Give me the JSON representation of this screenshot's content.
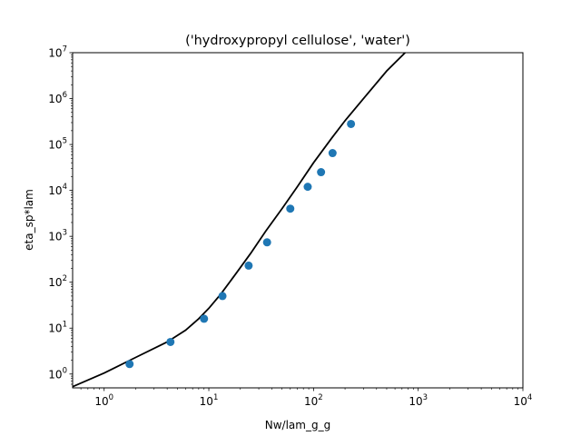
{
  "chart_data": {
    "type": "scatter",
    "title": "('hydroxypropyl cellulose', 'water')",
    "xlabel": "Nw/lam_g_g",
    "ylabel": "eta_sp*lam",
    "xscale": "log",
    "yscale": "log",
    "xlim": [
      0.5,
      10000
    ],
    "ylim": [
      0.5,
      10000000
    ],
    "grid": false,
    "x_ticks": [
      {
        "value": 1,
        "base": "10",
        "exp": "0"
      },
      {
        "value": 10,
        "base": "10",
        "exp": "1"
      },
      {
        "value": 100,
        "base": "10",
        "exp": "2"
      },
      {
        "value": 1000,
        "base": "10",
        "exp": "3"
      },
      {
        "value": 10000,
        "base": "10",
        "exp": "4"
      }
    ],
    "y_ticks": [
      {
        "value": 1,
        "base": "10",
        "exp": "0"
      },
      {
        "value": 10,
        "base": "10",
        "exp": "1"
      },
      {
        "value": 100,
        "base": "10",
        "exp": "2"
      },
      {
        "value": 1000,
        "base": "10",
        "exp": "3"
      },
      {
        "value": 10000,
        "base": "10",
        "exp": "4"
      },
      {
        "value": 100000,
        "base": "10",
        "exp": "5"
      },
      {
        "value": 1000000,
        "base": "10",
        "exp": "6"
      },
      {
        "value": 10000000,
        "base": "10",
        "exp": "7"
      }
    ],
    "series": [
      {
        "kind": "scatter",
        "color": "#1f77b4",
        "points": [
          {
            "x": 1.75,
            "y": 1.65
          },
          {
            "x": 4.3,
            "y": 5.0
          },
          {
            "x": 9.0,
            "y": 16
          },
          {
            "x": 13.5,
            "y": 50
          },
          {
            "x": 24,
            "y": 230
          },
          {
            "x": 36,
            "y": 740
          },
          {
            "x": 60,
            "y": 4000
          },
          {
            "x": 88,
            "y": 12000
          },
          {
            "x": 118,
            "y": 25000
          },
          {
            "x": 152,
            "y": 65000
          },
          {
            "x": 228,
            "y": 280000
          }
        ]
      },
      {
        "kind": "line",
        "color": "#000000",
        "points": [
          {
            "x": 0.5,
            "y": 0.53
          },
          {
            "x": 1,
            "y": 1.05
          },
          {
            "x": 2,
            "y": 2.3
          },
          {
            "x": 4,
            "y": 5.0
          },
          {
            "x": 6,
            "y": 9.0
          },
          {
            "x": 8,
            "y": 16
          },
          {
            "x": 10,
            "y": 27
          },
          {
            "x": 13,
            "y": 55
          },
          {
            "x": 18,
            "y": 150
          },
          {
            "x": 25,
            "y": 420
          },
          {
            "x": 35,
            "y": 1300
          },
          {
            "x": 50,
            "y": 4000
          },
          {
            "x": 70,
            "y": 12000
          },
          {
            "x": 100,
            "y": 40000
          },
          {
            "x": 150,
            "y": 140000
          },
          {
            "x": 200,
            "y": 330000
          },
          {
            "x": 300,
            "y": 1000000
          },
          {
            "x": 500,
            "y": 4000000
          },
          {
            "x": 750,
            "y": 10000000
          }
        ]
      }
    ]
  }
}
